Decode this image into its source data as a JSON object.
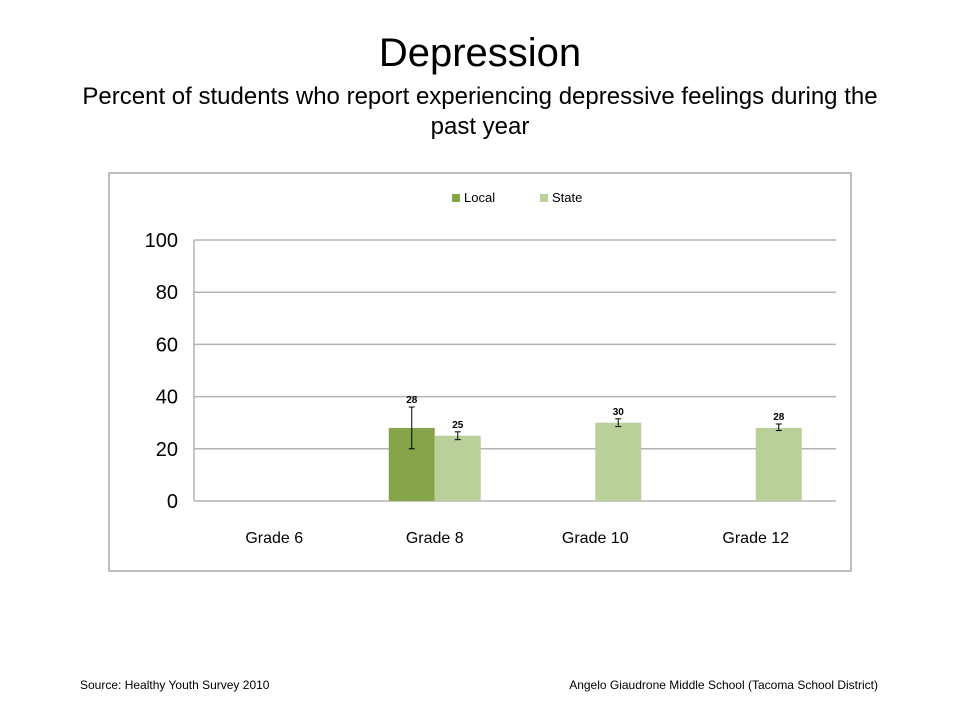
{
  "slide": {
    "title": "Depression",
    "subtitle": "Percent of students who report experiencing depressive feelings during the past year",
    "source": "Source: Healthy Youth Survey 2010",
    "school": "Angelo Giaudrone Middle School (Tacoma School District)"
  },
  "colors": {
    "local": "#86a44a",
    "state": "#b9d09b",
    "grid": "#b3b3b3",
    "error_bar": "#000000"
  },
  "chart_data": {
    "type": "bar",
    "categories": [
      "Grade 6",
      "Grade 8",
      "Grade 10",
      "Grade 12"
    ],
    "series": [
      {
        "name": "Local",
        "values": [
          null,
          28,
          null,
          null
        ],
        "error_low": [
          null,
          20,
          null,
          null
        ],
        "error_high": [
          null,
          36,
          null,
          null
        ]
      },
      {
        "name": "State",
        "values": [
          null,
          25,
          30,
          28
        ],
        "error_low": [
          null,
          23.5,
          28.5,
          27
        ],
        "error_high": [
          null,
          26.5,
          31.5,
          29.5
        ]
      }
    ],
    "data_labels": {
      "Local": [
        "",
        "28",
        "",
        ""
      ],
      "State": [
        "",
        "25",
        "30",
        "28"
      ]
    },
    "yticks": [
      "0",
      "20",
      "40",
      "60",
      "80",
      "100"
    ],
    "ylim": [
      0,
      100
    ],
    "grid": true,
    "legend_position": "top"
  }
}
